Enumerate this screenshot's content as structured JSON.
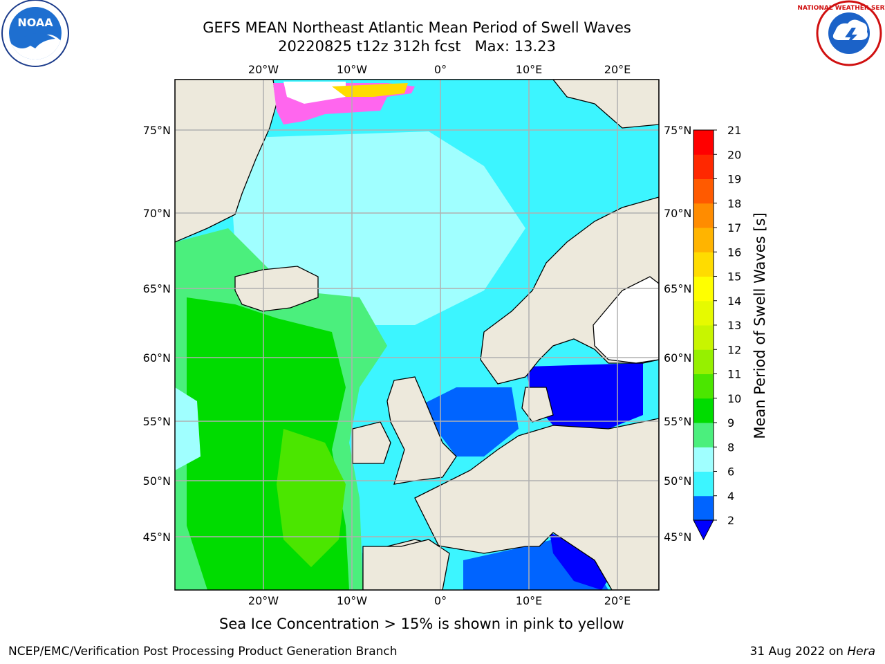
{
  "title_line1": "GEFS MEAN Northeast Atlantic Mean Period of Swell Waves",
  "title_line2": "20220825 t12z 312h fcst   Max: 13.23",
  "caption": "Sea Ice Concentration > 15% is shown in pink to yellow",
  "footer_left": "NCEP/EMC/Verification Post Processing Product Generation Branch",
  "footer_date": "31 Aug 2022 on ",
  "footer_machine": "Hera",
  "logos": {
    "left": "NOAA",
    "right": "NATIONAL WEATHER SERVICE"
  },
  "map": {
    "lon_ticks": [
      "20°W",
      "10°W",
      "0°",
      "10°E",
      "20°E"
    ],
    "lat_ticks": [
      "75°N",
      "70°N",
      "65°N",
      "60°N",
      "55°N",
      "50°N",
      "45°N"
    ]
  },
  "colorbar": {
    "label": "Mean Period of Swell Waves [s]",
    "ticks": [
      "2",
      "4",
      "6",
      "8",
      "9",
      "10",
      "11",
      "12",
      "13",
      "14",
      "15",
      "16",
      "17",
      "18",
      "19",
      "20",
      "21"
    ],
    "colors": [
      "#0064ff",
      "#00e6ff",
      "#3cf5ff",
      "#a0ffff",
      "#4bef7d",
      "#00dc00",
      "#4be600",
      "#96f000",
      "#c8f500",
      "#e6fa00",
      "#ffff00",
      "#ffdc00",
      "#ffb400",
      "#ff8c00",
      "#ff5a00",
      "#ff2800",
      "#ff0000"
    ],
    "under_color": "#0000ff"
  },
  "colors": {
    "land": "#ede9dc",
    "sea_cyan": "#3cf5ff",
    "sea_light": "#a0ffff",
    "sea_green": "#4bef7d",
    "sea_brightgreen": "#00dc00",
    "sea_blue": "#0064ff",
    "sea_deepblue": "#0000ff",
    "ice": "#ff66ee"
  }
}
